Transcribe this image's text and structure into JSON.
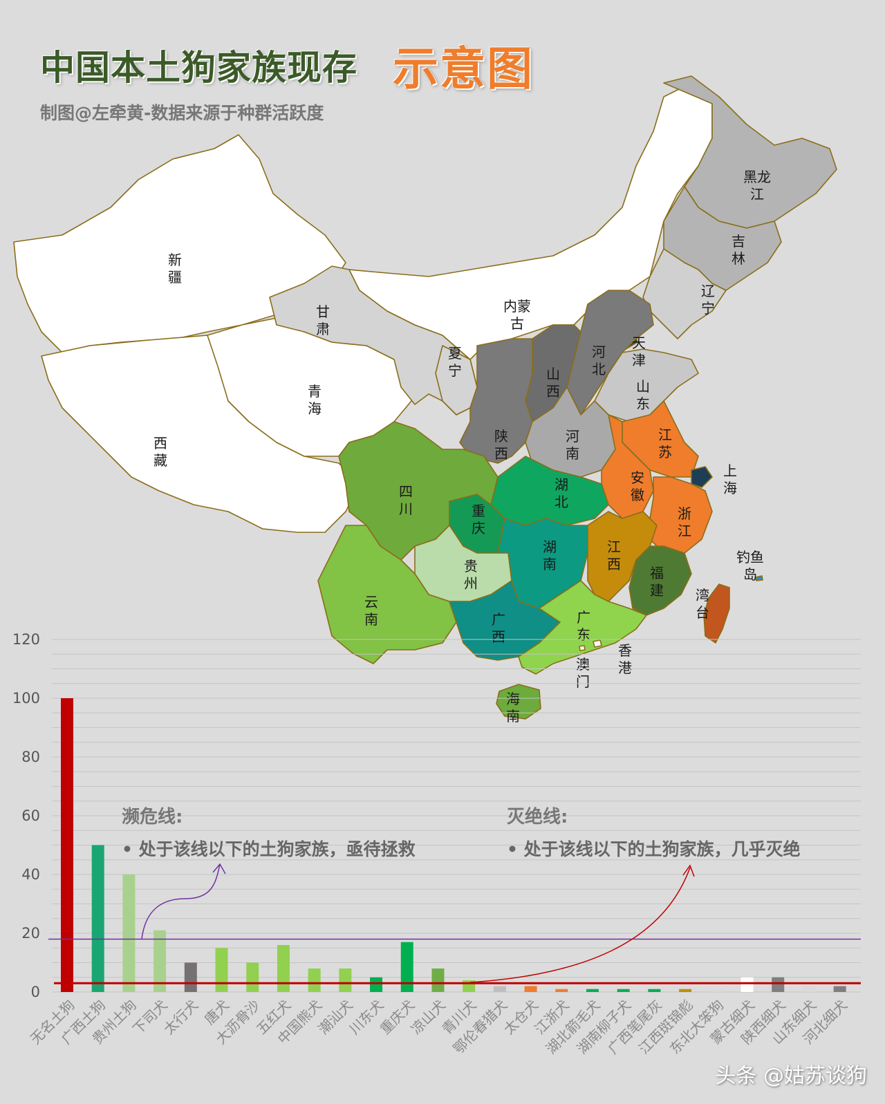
{
  "title": "中国本土狗家族现存",
  "title_accent": "示意图",
  "subtitle": "制图@左牵黄-数据来源于种群活跃度",
  "watermark": "头条 @姑苏谈狗",
  "map_labels": [
    {
      "name": "xinjiang",
      "text": "新疆",
      "color": "#ffffff"
    },
    {
      "name": "xizang",
      "text": "西藏",
      "color": "#ffffff"
    },
    {
      "name": "qinghai",
      "text": "青海",
      "color": "#ffffff"
    },
    {
      "name": "gansu",
      "text": "甘肃",
      "color": "#d4d4d4"
    },
    {
      "name": "neimenggu",
      "text": "内蒙古",
      "color": "#ffffff"
    },
    {
      "name": "ningxia",
      "text": "夏宁",
      "color": "#d4d4d4"
    },
    {
      "name": "heilongjiang",
      "text": "黑龙江",
      "color": "#b4b4b4"
    },
    {
      "name": "jilin",
      "text": "吉林",
      "color": "#b4b4b4"
    },
    {
      "name": "liaoning",
      "text": "辽宁",
      "color": "#d0d0d0"
    },
    {
      "name": "beijing",
      "text": "",
      "color": "#5fc9b0"
    },
    {
      "name": "tianjin",
      "text": "天津",
      "color": "#1c3f55"
    },
    {
      "name": "hebei",
      "text": "河北",
      "color": "#7a7a7a"
    },
    {
      "name": "shanxi",
      "text": "山西",
      "color": "#6d6d6d"
    },
    {
      "name": "shaanxi",
      "text": "陕西",
      "color": "#7a7a7a"
    },
    {
      "name": "shandong",
      "text": "山东",
      "color": "#c8c8c8"
    },
    {
      "name": "henan",
      "text": "河南",
      "color": "#a9a9a9"
    },
    {
      "name": "jiangsu",
      "text": "江苏",
      "color": "#ef7d2c"
    },
    {
      "name": "shanghai",
      "text": "上海",
      "color": "#1c3f55"
    },
    {
      "name": "anhui",
      "text": "安徽",
      "color": "#ef7d2c"
    },
    {
      "name": "zhejiang",
      "text": "浙江",
      "color": "#ef7d2c"
    },
    {
      "name": "hubei",
      "text": "湖北",
      "color": "#0fa660"
    },
    {
      "name": "chongqing",
      "text": "重庆",
      "color": "#149a55"
    },
    {
      "name": "sichuan",
      "text": "四川",
      "color": "#6faa3c"
    },
    {
      "name": "hunan",
      "text": "湖南",
      "color": "#0c9a82"
    },
    {
      "name": "jiangxi",
      "text": "江西",
      "color": "#c58c0c"
    },
    {
      "name": "fujian",
      "text": "福建",
      "color": "#4f7a33"
    },
    {
      "name": "guizhou",
      "text": "贵州",
      "color": "#b9dcaa"
    },
    {
      "name": "yunnan",
      "text": "云南",
      "color": "#82c244"
    },
    {
      "name": "guangxi",
      "text": "广西",
      "color": "#0f8f86"
    },
    {
      "name": "guangdong",
      "text": "广东",
      "color": "#8fd44c"
    },
    {
      "name": "hainan",
      "text": "海南",
      "color": "#6cab3c"
    },
    {
      "name": "taiwan",
      "text": "湾台",
      "color": "#c2561f"
    },
    {
      "name": "hongkong",
      "text": "香港",
      "color": "#ffffff"
    },
    {
      "name": "macau",
      "text": "澳门",
      "color": "#ffffff"
    },
    {
      "name": "diaoyudao",
      "text": "钓鱼岛",
      "color": "#2b8fd6"
    }
  ],
  "annotations": {
    "endangered_title": "濒危线:",
    "endangered_text": "• 处于该线以下的土狗家族，亟待拯救",
    "extinct_title": "灭绝线:",
    "extinct_text": "• 处于该线以下的土狗家族，几乎灭绝"
  },
  "chart_data": {
    "type": "bar",
    "title": "",
    "xlabel": "",
    "ylabel": "",
    "ylim": [
      0,
      120
    ],
    "yticks": [
      0,
      20,
      40,
      60,
      80,
      100,
      120
    ],
    "grid": true,
    "categories": [
      "无名土狗",
      "广西土狗",
      "贵州土狗",
      "下司犬",
      "太行犬",
      "唐犬",
      "大沥骨沙",
      "五红犬",
      "中国熊犬",
      "潮汕犬",
      "川东犬",
      "重庆犬",
      "凉山犬",
      "青川犬",
      "鄂伦春猎犬",
      "太仓犬",
      "江浙犬",
      "湖北箭毛犬",
      "湖南柳子犬",
      "广西笔尾灰",
      "江西斑锦彪",
      "东北大笨狗",
      "蒙古细犬",
      "陕西细犬",
      "山东细犬",
      "河北细犬"
    ],
    "values": [
      100,
      50,
      40,
      21,
      10,
      15,
      10,
      16,
      8,
      8,
      5,
      17,
      8,
      4,
      2,
      2,
      1,
      1,
      1,
      1,
      1,
      1,
      5,
      5,
      2,
      2
    ],
    "colors": [
      "#c00000",
      "#1aa672",
      "#a9d18e",
      "#a9d18e",
      "#767171",
      "#92d050",
      "#92d050",
      "#92d050",
      "#92d050",
      "#92d050",
      "#00b050",
      "#00b050",
      "#70ad47",
      "#92d050",
      "#bfbfbf",
      "#ed7d31",
      "#ed7d31",
      "#00b050",
      "#00b050",
      "#00b050",
      "#bf8f00",
      "#d9d9d9",
      "#ffffff",
      "#7f7f7f",
      "#d9d9d9",
      "#7f7f7f"
    ],
    "reference_lines": [
      {
        "name": "濒危线",
        "value": 18,
        "color": "#7030a0"
      },
      {
        "name": "灭绝线",
        "value": 3,
        "color": "#c00000"
      }
    ]
  }
}
